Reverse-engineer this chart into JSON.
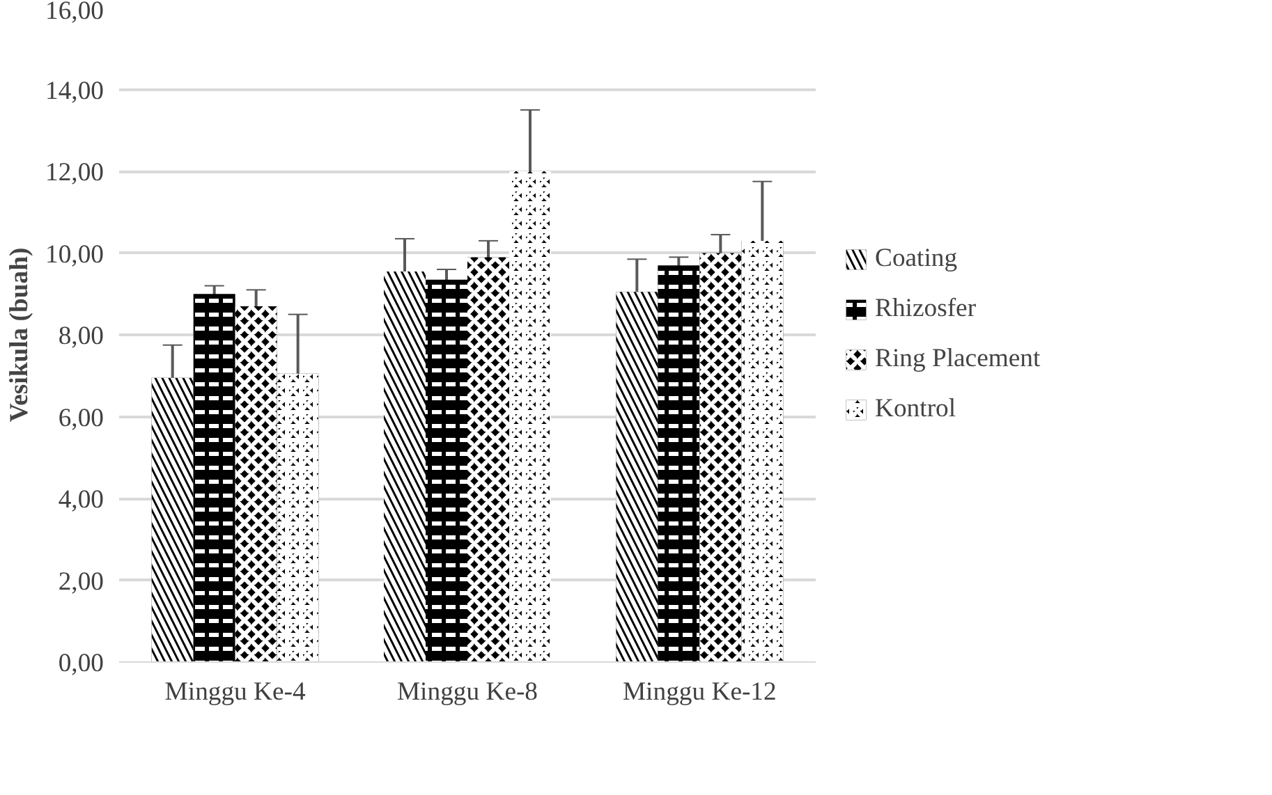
{
  "chart_data": {
    "type": "bar",
    "ylabel": "Vesikula (buah)",
    "categories": [
      "Minggu Ke-4",
      "Minggu Ke-8",
      "Minggu Ke-12"
    ],
    "series": [
      {
        "name": "Coating",
        "color": "#000000",
        "values": [
          6.95,
          9.55,
          9.05
        ],
        "errors": [
          0.8,
          0.8,
          0.8
        ]
      },
      {
        "name": "Rhizosfer",
        "color": "#000000",
        "values": [
          9.0,
          9.35,
          9.7
        ],
        "errors": [
          0.2,
          0.25,
          0.2
        ]
      },
      {
        "name": "Ring Placement",
        "color": "#000000",
        "values": [
          8.7,
          9.9,
          10.0
        ],
        "errors": [
          0.4,
          0.4,
          0.45
        ]
      },
      {
        "name": "Kontrol",
        "color": "#000000",
        "values": [
          7.05,
          12.0,
          10.3
        ],
        "errors": [
          1.45,
          1.5,
          1.45
        ]
      }
    ],
    "ylim": [
      0,
      16
    ],
    "yticks": [
      {
        "value": 0,
        "label": "0,00"
      },
      {
        "value": 2,
        "label": "2,00"
      },
      {
        "value": 4,
        "label": "4,00"
      },
      {
        "value": 6,
        "label": "6,00"
      },
      {
        "value": 8,
        "label": "8,00"
      },
      {
        "value": 10,
        "label": "10,00"
      },
      {
        "value": 12,
        "label": "12,00"
      },
      {
        "value": 14,
        "label": "14,00"
      },
      {
        "value": 16,
        "label": "16,00"
      }
    ],
    "grid": "y",
    "legend": "right"
  }
}
